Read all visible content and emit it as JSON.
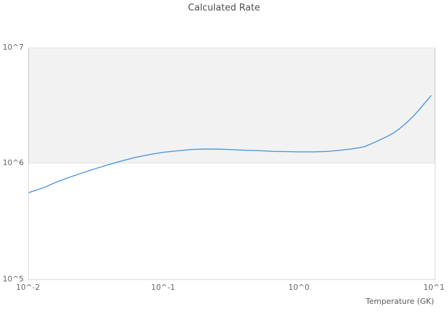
{
  "chart_data": {
    "type": "line",
    "title": "Calculated Rate",
    "xlabel": "Temperature (GK)",
    "ylabel": "",
    "x_scale": "log",
    "y_scale": "log",
    "xlog_range": [
      -2,
      1
    ],
    "ylog_range": [
      5,
      7
    ],
    "grid": false,
    "legend": false,
    "x_ticks": [
      {
        "value": 0.01,
        "label": "10^-2"
      },
      {
        "value": 0.1,
        "label": "10^-1"
      },
      {
        "value": 1,
        "label": "10^0"
      },
      {
        "value": 10,
        "label": "10^1"
      }
    ],
    "y_ticks": [
      {
        "value": 10000000,
        "label": "10^7"
      },
      {
        "value": 1000000,
        "label": "10^6"
      },
      {
        "value": 100000,
        "label": "10^5"
      }
    ],
    "band": {
      "y_from": 1000000,
      "y_to": 10000000,
      "fill": "#f2f2f2",
      "border": "#e3e3e3"
    },
    "line_color": "#4d96d9",
    "line_width": 1.4,
    "series": [
      {
        "name": "Calculated Rate",
        "points": [
          [
            0.01,
            560000
          ],
          [
            0.013,
            620000
          ],
          [
            0.016,
            690000
          ],
          [
            0.02,
            760000
          ],
          [
            0.025,
            830000
          ],
          [
            0.03,
            890000
          ],
          [
            0.04,
            985000
          ],
          [
            0.05,
            1060000
          ],
          [
            0.06,
            1120000
          ],
          [
            0.08,
            1200000
          ],
          [
            0.1,
            1250000
          ],
          [
            0.13,
            1290000
          ],
          [
            0.16,
            1320000
          ],
          [
            0.2,
            1330000
          ],
          [
            0.25,
            1330000
          ],
          [
            0.3,
            1320000
          ],
          [
            0.4,
            1300000
          ],
          [
            0.5,
            1290000
          ],
          [
            0.65,
            1270000
          ],
          [
            0.8,
            1265000
          ],
          [
            1.0,
            1260000
          ],
          [
            1.3,
            1260000
          ],
          [
            1.6,
            1270000
          ],
          [
            2.0,
            1300000
          ],
          [
            2.5,
            1340000
          ],
          [
            3.0,
            1390000
          ],
          [
            3.5,
            1500000
          ],
          [
            4.0,
            1610000
          ],
          [
            4.5,
            1720000
          ],
          [
            5.0,
            1840000
          ],
          [
            5.5,
            2000000
          ],
          [
            6.0,
            2170000
          ],
          [
            6.5,
            2370000
          ],
          [
            7.0,
            2580000
          ],
          [
            7.5,
            2820000
          ],
          [
            8.0,
            3080000
          ],
          [
            8.5,
            3350000
          ],
          [
            9.0,
            3610000
          ],
          [
            9.4,
            3850000
          ]
        ]
      }
    ]
  }
}
